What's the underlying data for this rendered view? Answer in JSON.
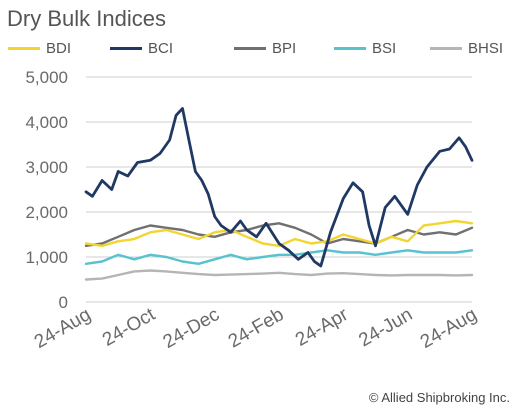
{
  "chart_data": {
    "type": "line",
    "title": "Dry Bulk Indices",
    "xlabel": "",
    "ylabel": "",
    "ylim": [
      0,
      5000
    ],
    "yticks": [
      0,
      1000,
      2000,
      3000,
      4000,
      5000
    ],
    "ytick_labels": [
      "0",
      "1,000",
      "2,000",
      "3,000",
      "4,000",
      "5,000"
    ],
    "xtick_labels": [
      "24-Aug",
      "24-Oct",
      "24-Dec",
      "24-Feb",
      "24-Apr",
      "24-Jun",
      "24-Aug"
    ],
    "xlim_months": [
      0,
      12
    ],
    "grid": "horizontal",
    "legend": "top",
    "series": [
      {
        "name": "BDI",
        "color": "#f2d530",
        "points": [
          [
            0,
            1300
          ],
          [
            0.5,
            1250
          ],
          [
            1,
            1350
          ],
          [
            1.5,
            1400
          ],
          [
            2,
            1550
          ],
          [
            2.5,
            1600
          ],
          [
            3,
            1500
          ],
          [
            3.5,
            1400
          ],
          [
            4,
            1550
          ],
          [
            4.5,
            1600
          ],
          [
            5,
            1450
          ],
          [
            5.5,
            1300
          ],
          [
            6,
            1250
          ],
          [
            6.5,
            1400
          ],
          [
            7,
            1300
          ],
          [
            7.5,
            1350
          ],
          [
            8,
            1500
          ],
          [
            8.5,
            1400
          ],
          [
            9,
            1300
          ],
          [
            9.5,
            1450
          ],
          [
            10,
            1350
          ],
          [
            10.5,
            1700
          ],
          [
            11,
            1750
          ],
          [
            11.5,
            1800
          ],
          [
            12,
            1750
          ]
        ]
      },
      {
        "name": "BCI",
        "color": "#1f3864",
        "points": [
          [
            0,
            2450
          ],
          [
            0.2,
            2350
          ],
          [
            0.5,
            2700
          ],
          [
            0.8,
            2500
          ],
          [
            1,
            2900
          ],
          [
            1.3,
            2800
          ],
          [
            1.6,
            3100
          ],
          [
            2,
            3150
          ],
          [
            2.3,
            3300
          ],
          [
            2.6,
            3600
          ],
          [
            2.8,
            4150
          ],
          [
            3,
            4300
          ],
          [
            3.2,
            3600
          ],
          [
            3.4,
            2900
          ],
          [
            3.6,
            2700
          ],
          [
            3.8,
            2400
          ],
          [
            4,
            1900
          ],
          [
            4.2,
            1700
          ],
          [
            4.5,
            1550
          ],
          [
            4.8,
            1800
          ],
          [
            5,
            1600
          ],
          [
            5.3,
            1450
          ],
          [
            5.6,
            1750
          ],
          [
            6,
            1300
          ],
          [
            6.3,
            1150
          ],
          [
            6.6,
            950
          ],
          [
            6.9,
            1100
          ],
          [
            7.1,
            900
          ],
          [
            7.3,
            800
          ],
          [
            7.6,
            1550
          ],
          [
            8,
            2300
          ],
          [
            8.3,
            2650
          ],
          [
            8.6,
            2450
          ],
          [
            8.8,
            1700
          ],
          [
            9,
            1250
          ],
          [
            9.3,
            2100
          ],
          [
            9.6,
            2350
          ],
          [
            10,
            1950
          ],
          [
            10.3,
            2600
          ],
          [
            10.6,
            3000
          ],
          [
            11,
            3350
          ],
          [
            11.3,
            3400
          ],
          [
            11.6,
            3650
          ],
          [
            11.8,
            3450
          ],
          [
            12,
            3150
          ]
        ]
      },
      {
        "name": "BPI",
        "color": "#707070",
        "points": [
          [
            0,
            1250
          ],
          [
            0.5,
            1300
          ],
          [
            1,
            1450
          ],
          [
            1.5,
            1600
          ],
          [
            2,
            1700
          ],
          [
            2.5,
            1650
          ],
          [
            3,
            1600
          ],
          [
            3.5,
            1500
          ],
          [
            4,
            1450
          ],
          [
            4.5,
            1550
          ],
          [
            5,
            1600
          ],
          [
            5.5,
            1700
          ],
          [
            6,
            1750
          ],
          [
            6.5,
            1650
          ],
          [
            7,
            1500
          ],
          [
            7.5,
            1300
          ],
          [
            8,
            1400
          ],
          [
            8.5,
            1350
          ],
          [
            9,
            1300
          ],
          [
            9.5,
            1450
          ],
          [
            10,
            1600
          ],
          [
            10.5,
            1500
          ],
          [
            11,
            1550
          ],
          [
            11.5,
            1500
          ],
          [
            12,
            1650
          ]
        ]
      },
      {
        "name": "BSI",
        "color": "#57c3cf",
        "points": [
          [
            0,
            850
          ],
          [
            0.5,
            900
          ],
          [
            1,
            1050
          ],
          [
            1.5,
            950
          ],
          [
            2,
            1050
          ],
          [
            2.5,
            1000
          ],
          [
            3,
            900
          ],
          [
            3.5,
            850
          ],
          [
            4,
            950
          ],
          [
            4.5,
            1050
          ],
          [
            5,
            950
          ],
          [
            5.5,
            1000
          ],
          [
            6,
            1050
          ],
          [
            6.5,
            1050
          ],
          [
            7,
            1100
          ],
          [
            7.5,
            1150
          ],
          [
            8,
            1100
          ],
          [
            8.5,
            1100
          ],
          [
            9,
            1050
          ],
          [
            9.5,
            1100
          ],
          [
            10,
            1150
          ],
          [
            10.5,
            1100
          ],
          [
            11,
            1100
          ],
          [
            11.5,
            1100
          ],
          [
            12,
            1150
          ]
        ]
      },
      {
        "name": "BHSI",
        "color": "#b5b5b5",
        "points": [
          [
            0,
            500
          ],
          [
            0.5,
            520
          ],
          [
            1,
            600
          ],
          [
            1.5,
            680
          ],
          [
            2,
            700
          ],
          [
            2.5,
            680
          ],
          [
            3,
            650
          ],
          [
            3.5,
            620
          ],
          [
            4,
            600
          ],
          [
            4.5,
            610
          ],
          [
            5,
            620
          ],
          [
            5.5,
            630
          ],
          [
            6,
            650
          ],
          [
            6.5,
            620
          ],
          [
            7,
            600
          ],
          [
            7.5,
            630
          ],
          [
            8,
            640
          ],
          [
            8.5,
            620
          ],
          [
            9,
            600
          ],
          [
            9.5,
            590
          ],
          [
            10,
            600
          ],
          [
            10.5,
            600
          ],
          [
            11,
            600
          ],
          [
            11.5,
            590
          ],
          [
            12,
            600
          ]
        ]
      }
    ]
  },
  "footer": {
    "copyright": "© Allied Shipbroking Inc."
  }
}
